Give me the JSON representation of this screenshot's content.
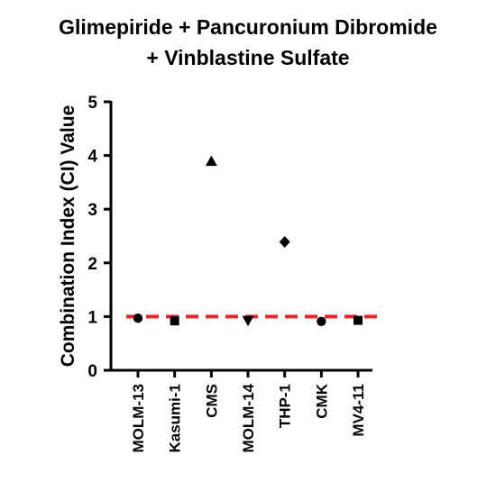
{
  "chart_data": {
    "type": "scatter",
    "title_lines": [
      "Glimepiride + Pancuronium Dibromide",
      "+ Vinblastine Sulfate"
    ],
    "xlabel": "",
    "ylabel": "Combination Index (CI) Value",
    "ylim": [
      0,
      5
    ],
    "yticks": [
      "0",
      "1",
      "2",
      "3",
      "4",
      "5"
    ],
    "grid": false,
    "categories": [
      "MOLM-13",
      "Kasumi-1",
      "CMS",
      "MOLM-14",
      "THP-1",
      "CMK",
      "MV4-11"
    ],
    "values": [
      0.97,
      0.92,
      3.89,
      0.93,
      2.39,
      0.91,
      0.93
    ],
    "markers": [
      "circle",
      "square",
      "triangle-up",
      "triangle-down",
      "diamond",
      "circle",
      "square"
    ],
    "reference_line": {
      "y": 1.0,
      "color": "#e8262a",
      "style": "dashed"
    },
    "colors": {
      "points": "#000000",
      "axis": "#000000"
    }
  }
}
